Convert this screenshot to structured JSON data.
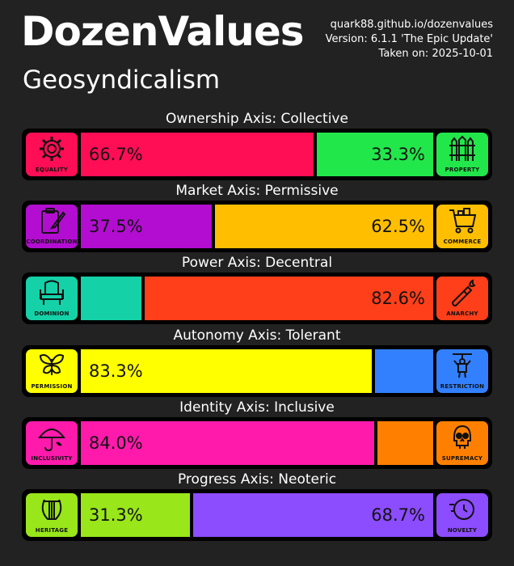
{
  "header": {
    "title": "DozenValues",
    "subtitle": "Geosyndicalism",
    "site": "quark88.github.io/dozenvalues",
    "version": "Version: 6.1.1 'The Epic Update'",
    "taken": "Taken on: 2025-10-01"
  },
  "chart_data": {
    "type": "bar",
    "title": "DozenValues",
    "subtitle": "Geosyndicalism",
    "orientation": "horizontal-stacked",
    "xlim": [
      0,
      100
    ],
    "axes": [
      {
        "label": "Ownership Axis: Collective",
        "left": {
          "name": "EQUALITY",
          "value": 66.7,
          "text": "66.7%",
          "color": "#ff0d55",
          "icon": "gear-icon"
        },
        "right": {
          "name": "PROPERTY",
          "value": 33.3,
          "text": "33.3%",
          "color": "#22e74b",
          "icon": "fence-icon"
        }
      },
      {
        "label": "Market Axis: Permissive",
        "left": {
          "name": "COORDINATION",
          "value": 37.5,
          "text": "37.5%",
          "color": "#b30dd1",
          "icon": "clipboard-icon"
        },
        "right": {
          "name": "COMMERCE",
          "value": 62.5,
          "text": "62.5%",
          "color": "#ffbf00",
          "icon": "shopping-cart-icon"
        }
      },
      {
        "label": "Power Axis: Decentral",
        "left": {
          "name": "DOMINION",
          "value": 17.4,
          "text": "",
          "color": "#14d1a8",
          "icon": "throne-icon"
        },
        "right": {
          "name": "ANARCHY",
          "value": 82.6,
          "text": "82.6%",
          "color": "#ff3f1a",
          "icon": "molotov-icon"
        }
      },
      {
        "label": "Autonomy Axis: Tolerant",
        "left": {
          "name": "PERMISSION",
          "value": 83.3,
          "text": "83.3%",
          "color": "#ffff00",
          "icon": "butterfly-icon"
        },
        "right": {
          "name": "RESTRICTION",
          "value": 16.7,
          "text": "",
          "color": "#3380ff",
          "icon": "puppet-icon"
        }
      },
      {
        "label": "Identity Axis: Inclusive",
        "left": {
          "name": "INCLUSIVITY",
          "value": 84.0,
          "text": "84.0%",
          "color": "#ff1aac",
          "icon": "umbrella-icon"
        },
        "right": {
          "name": "SUPREMACY",
          "value": 16.0,
          "text": "",
          "color": "#ff8000",
          "icon": "skull-icon"
        }
      },
      {
        "label": "Progress Axis: Neoteric",
        "left": {
          "name": "HERITAGE",
          "value": 31.3,
          "text": "31.3%",
          "color": "#99e61a",
          "icon": "lyre-icon"
        },
        "right": {
          "name": "NOVELTY",
          "value": 68.7,
          "text": "68.7%",
          "color": "#8c4cff",
          "icon": "clock-icon"
        }
      }
    ]
  }
}
